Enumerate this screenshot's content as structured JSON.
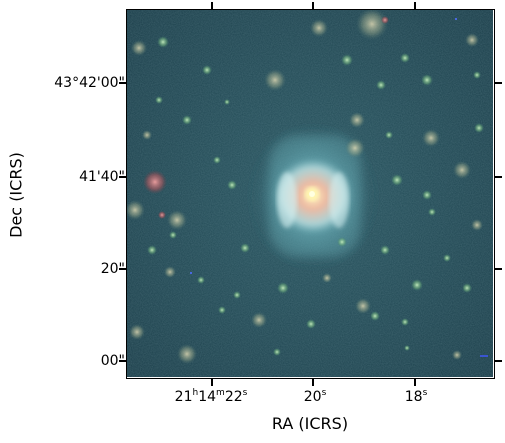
{
  "axes": {
    "xlabel": "RA (ICRS)",
    "ylabel": "Dec (ICRS)",
    "x_ticks": [
      {
        "h": "21",
        "hu": "h",
        "m": "14",
        "mu": "m",
        "s": "22",
        "su": "s"
      },
      {
        "s": "20",
        "su": "s"
      },
      {
        "s": "18",
        "su": "s"
      }
    ],
    "y_ticks": [
      "43°42'00\"",
      "41'40\"",
      "20\"",
      "00\""
    ]
  },
  "image": {
    "subject": "planetary-nebula",
    "colors": {
      "background": "#1f4550",
      "nebula_outer": "#7fc8d0",
      "nebula_core": "#f0d6b0",
      "nucleus": "#fff1a0",
      "red_star": "#c26a6a",
      "green_star": "#7fbf88"
    }
  }
}
